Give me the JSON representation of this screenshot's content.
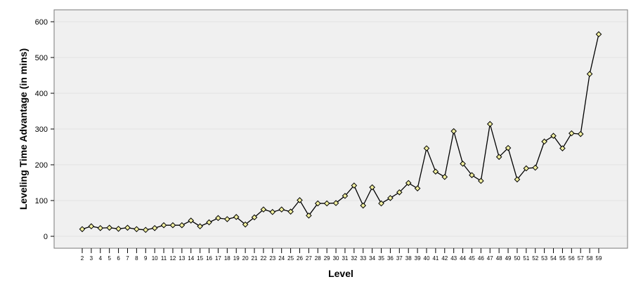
{
  "chart_data": {
    "type": "line",
    "xlabel": "Level",
    "ylabel": "Leveling Time Advantage (in mins)",
    "ylim": [
      -30,
      630
    ],
    "yticks": [
      0,
      100,
      200,
      300,
      400,
      500,
      600
    ],
    "grid": true,
    "marker": "diamond",
    "colors": {
      "line": "#000000",
      "marker_fill": "#f2f0a0",
      "plot_background": "#f0f0f0",
      "gridline": "#e2e2e2"
    },
    "categories": [
      "2",
      "3",
      "4",
      "5",
      "6",
      "7",
      "8",
      "9",
      "10",
      "11",
      "12",
      "13",
      "14",
      "15",
      "16",
      "17",
      "18",
      "19",
      "20",
      "21",
      "22",
      "23",
      "24",
      "25",
      "26",
      "27",
      "28",
      "29",
      "30",
      "31",
      "32",
      "33",
      "34",
      "35",
      "36",
      "37",
      "38",
      "39",
      "40",
      "41",
      "42",
      "43",
      "44",
      "45",
      "46",
      "47",
      "48",
      "49",
      "50",
      "51",
      "52",
      "53",
      "54",
      "55",
      "56",
      "57",
      "58",
      "59"
    ],
    "values": [
      20,
      28,
      23,
      24,
      21,
      24,
      20,
      18,
      23,
      31,
      31,
      31,
      44,
      28,
      39,
      51,
      48,
      54,
      33,
      53,
      75,
      68,
      75,
      69,
      101,
      58,
      92,
      92,
      93,
      113,
      142,
      86,
      137,
      92,
      107,
      123,
      149,
      134,
      246,
      181,
      166,
      294,
      203,
      171,
      155,
      314,
      222,
      247,
      159,
      190,
      192,
      265,
      281,
      246,
      288,
      286,
      454,
      565
    ]
  }
}
